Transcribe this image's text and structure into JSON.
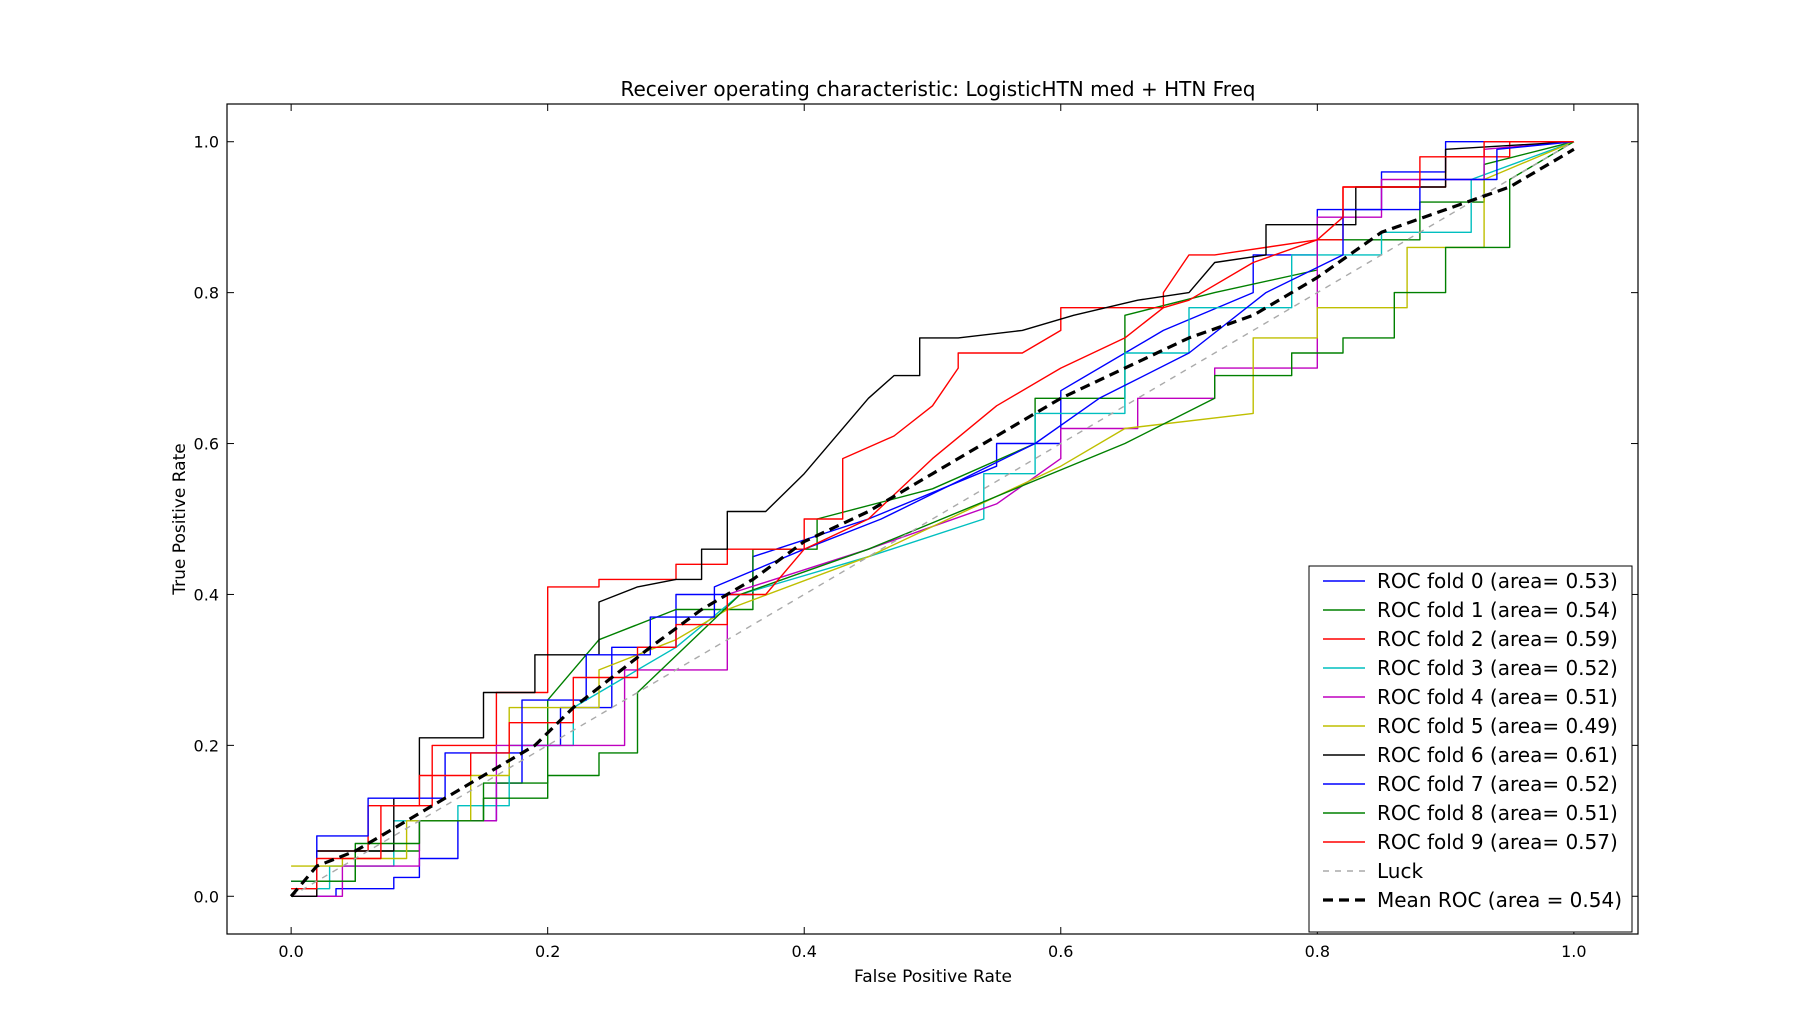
{
  "chart_data": {
    "type": "line",
    "title": "Receiver operating characteristic: LogisticHTN med + HTN Freq",
    "xlabel": "False Positive Rate",
    "ylabel": "True Positive Rate",
    "xlim": [
      -0.05,
      1.05
    ],
    "ylim": [
      -0.05,
      1.05
    ],
    "x_ticks": [
      "0.0",
      "0.2",
      "0.4",
      "0.6",
      "0.8",
      "1.0"
    ],
    "y_ticks": [
      "0.0",
      "0.2",
      "0.4",
      "0.6",
      "0.8",
      "1.0"
    ],
    "grid": false,
    "legend_position": "lower-right",
    "series": [
      {
        "name": "ROC fold 0 (area= 0.53)",
        "color": "#0000ff",
        "dash": "solid",
        "x": [
          0,
          0.035,
          0.035,
          0.08,
          0.08,
          0.1,
          0.1,
          0.13,
          0.13,
          0.16,
          0.16,
          0.18,
          0.18,
          0.21,
          0.21,
          0.25,
          0.25,
          0.3,
          0.3,
          0.36,
          0.36,
          0.45,
          0.55,
          0.55,
          0.6,
          0.6,
          0.68,
          0.75,
          0.75,
          0.8,
          0.8,
          0.85,
          0.85,
          0.9,
          0.9,
          0.93,
          1.0
        ],
        "y": [
          0,
          0,
          0.01,
          0.01,
          0.025,
          0.025,
          0.05,
          0.05,
          0.1,
          0.1,
          0.15,
          0.15,
          0.2,
          0.2,
          0.25,
          0.25,
          0.33,
          0.33,
          0.4,
          0.4,
          0.45,
          0.5,
          0.57,
          0.6,
          0.6,
          0.67,
          0.75,
          0.8,
          0.85,
          0.85,
          0.91,
          0.91,
          0.96,
          0.96,
          1.0,
          1.0,
          1.0
        ]
      },
      {
        "name": "ROC fold 1 (area= 0.54)",
        "color": "#008000",
        "dash": "solid",
        "x": [
          0,
          0.05,
          0.05,
          0.1,
          0.1,
          0.15,
          0.15,
          0.2,
          0.2,
          0.24,
          0.3,
          0.36,
          0.36,
          0.41,
          0.41,
          0.5,
          0.58,
          0.58,
          0.65,
          0.65,
          0.72,
          0.8,
          0.8,
          0.88,
          0.88,
          0.93,
          0.93,
          1.0
        ],
        "y": [
          0.02,
          0.02,
          0.06,
          0.06,
          0.1,
          0.1,
          0.15,
          0.15,
          0.26,
          0.34,
          0.38,
          0.38,
          0.46,
          0.46,
          0.5,
          0.54,
          0.6,
          0.66,
          0.66,
          0.77,
          0.8,
          0.83,
          0.87,
          0.87,
          0.92,
          0.92,
          0.97,
          1.0
        ]
      },
      {
        "name": "ROC fold 2 (area= 0.59)",
        "color": "#ff0000",
        "dash": "solid",
        "x": [
          0,
          0.02,
          0.02,
          0.06,
          0.06,
          0.11,
          0.11,
          0.16,
          0.16,
          0.2,
          0.2,
          0.24,
          0.24,
          0.3,
          0.3,
          0.34,
          0.34,
          0.4,
          0.4,
          0.43,
          0.43,
          0.47,
          0.5,
          0.52,
          0.52,
          0.57,
          0.6,
          0.6,
          0.68,
          0.68,
          0.7,
          0.72,
          0.8,
          0.82,
          0.82,
          0.9,
          0.9,
          0.95,
          0.95,
          1.0
        ],
        "y": [
          0.0,
          0.0,
          0.06,
          0.06,
          0.12,
          0.12,
          0.2,
          0.2,
          0.27,
          0.27,
          0.41,
          0.41,
          0.42,
          0.42,
          0.44,
          0.44,
          0.46,
          0.46,
          0.5,
          0.5,
          0.58,
          0.61,
          0.65,
          0.7,
          0.72,
          0.72,
          0.75,
          0.78,
          0.78,
          0.8,
          0.85,
          0.85,
          0.87,
          0.87,
          0.94,
          0.94,
          0.98,
          0.98,
          1.0,
          1.0
        ]
      },
      {
        "name": "ROC fold 3 (area= 0.52)",
        "color": "#00bfbf",
        "dash": "solid",
        "x": [
          0,
          0.03,
          0.03,
          0.08,
          0.08,
          0.13,
          0.13,
          0.17,
          0.17,
          0.22,
          0.22,
          0.3,
          0.35,
          0.45,
          0.54,
          0.54,
          0.58,
          0.58,
          0.65,
          0.65,
          0.7,
          0.7,
          0.78,
          0.78,
          0.85,
          0.85,
          0.92,
          0.92,
          1.0
        ],
        "y": [
          0.01,
          0.01,
          0.04,
          0.04,
          0.1,
          0.1,
          0.12,
          0.12,
          0.2,
          0.2,
          0.25,
          0.33,
          0.4,
          0.45,
          0.5,
          0.56,
          0.56,
          0.64,
          0.64,
          0.72,
          0.72,
          0.78,
          0.78,
          0.85,
          0.85,
          0.88,
          0.88,
          0.95,
          1.0
        ]
      },
      {
        "name": "ROC fold 4 (area= 0.51)",
        "color": "#bf00bf",
        "dash": "solid",
        "x": [
          0,
          0.04,
          0.04,
          0.1,
          0.1,
          0.16,
          0.16,
          0.26,
          0.26,
          0.34,
          0.34,
          0.45,
          0.55,
          0.6,
          0.6,
          0.66,
          0.66,
          0.72,
          0.72,
          0.8,
          0.8,
          0.85,
          0.85,
          0.93,
          0.93,
          1.0
        ],
        "y": [
          0.0,
          0.0,
          0.04,
          0.04,
          0.1,
          0.1,
          0.2,
          0.2,
          0.3,
          0.3,
          0.4,
          0.46,
          0.52,
          0.58,
          0.62,
          0.62,
          0.66,
          0.66,
          0.7,
          0.7,
          0.9,
          0.9,
          0.95,
          0.95,
          0.99,
          1.0
        ]
      },
      {
        "name": "ROC fold 5 (area= 0.49)",
        "color": "#bfbf00",
        "dash": "solid",
        "x": [
          0,
          0.04,
          0.04,
          0.09,
          0.09,
          0.14,
          0.14,
          0.17,
          0.17,
          0.24,
          0.24,
          0.3,
          0.34,
          0.45,
          0.55,
          0.6,
          0.65,
          0.75,
          0.75,
          0.8,
          0.8,
          0.87,
          0.87,
          0.93,
          0.93,
          1.0
        ],
        "y": [
          0.04,
          0.04,
          0.05,
          0.05,
          0.1,
          0.1,
          0.16,
          0.16,
          0.25,
          0.25,
          0.3,
          0.34,
          0.38,
          0.45,
          0.53,
          0.57,
          0.62,
          0.64,
          0.74,
          0.74,
          0.78,
          0.78,
          0.86,
          0.86,
          0.95,
          1.0
        ]
      },
      {
        "name": "ROC fold 6 (area= 0.61)",
        "color": "#000000",
        "dash": "solid",
        "x": [
          0,
          0.02,
          0.02,
          0.08,
          0.08,
          0.1,
          0.1,
          0.15,
          0.15,
          0.19,
          0.19,
          0.24,
          0.24,
          0.27,
          0.3,
          0.32,
          0.32,
          0.34,
          0.34,
          0.37,
          0.4,
          0.45,
          0.47,
          0.49,
          0.49,
          0.52,
          0.57,
          0.61,
          0.66,
          0.7,
          0.72,
          0.76,
          0.76,
          0.83,
          0.83,
          0.9,
          0.9,
          1.0
        ],
        "y": [
          0.0,
          0.0,
          0.06,
          0.06,
          0.13,
          0.13,
          0.21,
          0.21,
          0.27,
          0.27,
          0.32,
          0.32,
          0.39,
          0.41,
          0.42,
          0.42,
          0.46,
          0.46,
          0.51,
          0.51,
          0.56,
          0.66,
          0.69,
          0.69,
          0.74,
          0.74,
          0.75,
          0.77,
          0.79,
          0.8,
          0.84,
          0.85,
          0.89,
          0.89,
          0.94,
          0.94,
          0.99,
          1.0
        ]
      },
      {
        "name": "ROC fold 7 (area= 0.52)",
        "color": "#0000ff",
        "dash": "solid",
        "x": [
          0,
          0.02,
          0.02,
          0.06,
          0.06,
          0.12,
          0.12,
          0.18,
          0.18,
          0.23,
          0.23,
          0.28,
          0.28,
          0.33,
          0.33,
          0.4,
          0.46,
          0.52,
          0.58,
          0.63,
          0.7,
          0.76,
          0.82,
          0.82,
          0.88,
          0.88,
          0.94,
          0.94,
          1.0
        ],
        "y": [
          0.02,
          0.02,
          0.08,
          0.08,
          0.13,
          0.13,
          0.19,
          0.19,
          0.26,
          0.26,
          0.32,
          0.32,
          0.37,
          0.37,
          0.41,
          0.46,
          0.5,
          0.55,
          0.6,
          0.66,
          0.72,
          0.8,
          0.85,
          0.91,
          0.91,
          0.95,
          0.95,
          0.99,
          1.0
        ]
      },
      {
        "name": "ROC fold 8 (area= 0.51)",
        "color": "#008000",
        "dash": "solid",
        "x": [
          0,
          0.05,
          0.05,
          0.1,
          0.1,
          0.15,
          0.15,
          0.2,
          0.2,
          0.24,
          0.24,
          0.27,
          0.27,
          0.35,
          0.45,
          0.55,
          0.65,
          0.72,
          0.72,
          0.78,
          0.78,
          0.82,
          0.82,
          0.86,
          0.86,
          0.9,
          0.9,
          0.95,
          0.95,
          1.0
        ],
        "y": [
          0.02,
          0.02,
          0.07,
          0.07,
          0.1,
          0.1,
          0.13,
          0.13,
          0.16,
          0.16,
          0.19,
          0.19,
          0.27,
          0.4,
          0.46,
          0.53,
          0.6,
          0.66,
          0.69,
          0.69,
          0.72,
          0.72,
          0.74,
          0.74,
          0.8,
          0.8,
          0.86,
          0.86,
          0.95,
          1.0
        ]
      },
      {
        "name": "ROC fold 9 (area= 0.57)",
        "color": "#ff0000",
        "dash": "solid",
        "x": [
          0,
          0.02,
          0.02,
          0.07,
          0.07,
          0.1,
          0.1,
          0.14,
          0.14,
          0.17,
          0.17,
          0.22,
          0.22,
          0.27,
          0.27,
          0.3,
          0.3,
          0.34,
          0.34,
          0.37,
          0.4,
          0.45,
          0.5,
          0.55,
          0.6,
          0.65,
          0.68,
          0.7,
          0.75,
          0.8,
          0.82,
          0.82,
          0.88,
          0.88,
          0.93,
          0.93,
          1.0
        ],
        "y": [
          0.01,
          0.01,
          0.05,
          0.05,
          0.12,
          0.12,
          0.16,
          0.16,
          0.19,
          0.19,
          0.23,
          0.23,
          0.29,
          0.29,
          0.33,
          0.33,
          0.36,
          0.36,
          0.4,
          0.4,
          0.46,
          0.5,
          0.58,
          0.65,
          0.7,
          0.74,
          0.78,
          0.79,
          0.84,
          0.87,
          0.9,
          0.94,
          0.94,
          0.98,
          0.98,
          1.0,
          1.0
        ]
      },
      {
        "name": "Luck",
        "color": "#aaaaaa",
        "dash": "dashed",
        "x": [
          0,
          1
        ],
        "y": [
          0,
          1
        ]
      },
      {
        "name": "Mean ROC (area = 0.54)",
        "color": "#000000",
        "dash": "dashed-bold",
        "x": [
          0,
          0.02,
          0.05,
          0.08,
          0.1,
          0.13,
          0.16,
          0.19,
          0.22,
          0.25,
          0.28,
          0.32,
          0.36,
          0.4,
          0.45,
          0.5,
          0.55,
          0.6,
          0.65,
          0.7,
          0.75,
          0.8,
          0.85,
          0.9,
          0.95,
          1.0
        ],
        "y": [
          0,
          0.04,
          0.06,
          0.09,
          0.11,
          0.14,
          0.17,
          0.2,
          0.25,
          0.29,
          0.33,
          0.38,
          0.42,
          0.47,
          0.51,
          0.56,
          0.61,
          0.66,
          0.7,
          0.74,
          0.77,
          0.82,
          0.88,
          0.91,
          0.94,
          0.99
        ]
      }
    ]
  }
}
